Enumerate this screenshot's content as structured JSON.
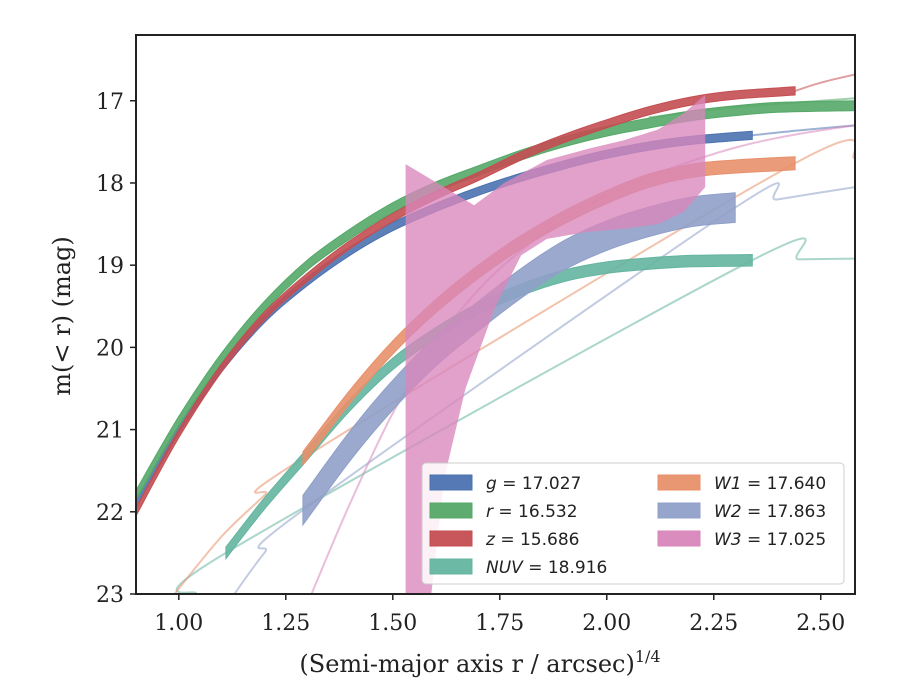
{
  "chart_data": {
    "type": "line",
    "title": "",
    "xlabel": "(Semi-major axis r / arcsec)",
    "xlabel_exponent": "1/4",
    "ylabel": "m(< r) (mag)",
    "xlim": [
      0.9,
      2.58
    ],
    "ylim": [
      23.0,
      16.2
    ],
    "y_inverted": true,
    "x_ticks": [
      1.0,
      1.25,
      1.5,
      1.75,
      2.0,
      2.25,
      2.5
    ],
    "x_tick_labels": [
      "1.00",
      "1.25",
      "1.50",
      "1.75",
      "2.00",
      "2.25",
      "2.50"
    ],
    "y_ticks": [
      17,
      18,
      19,
      20,
      21,
      22,
      23
    ],
    "y_tick_labels": [
      "17",
      "18",
      "19",
      "20",
      "21",
      "22",
      "23"
    ],
    "grid": false,
    "legend_position": "lower-right",
    "legend_columns": 2,
    "series": [
      {
        "name": "g = 17.027",
        "legend_var": "g",
        "legend_value": "17.027",
        "color": "#4c72b0",
        "data_x": [
          0.9,
          1.0,
          1.1,
          1.2,
          1.3,
          1.4,
          1.5,
          1.6,
          1.7,
          1.8,
          1.9,
          2.0,
          2.1,
          2.2,
          2.34
        ],
        "data_y": [
          21.9,
          21.0,
          20.25,
          19.65,
          19.2,
          18.83,
          18.53,
          18.3,
          18.1,
          17.93,
          17.78,
          17.65,
          17.55,
          17.48,
          17.42
        ],
        "band": 0.05,
        "model_x": [
          2.34,
          2.45,
          2.58
        ],
        "model_y": [
          17.42,
          17.36,
          17.3
        ]
      },
      {
        "name": "r = 16.532",
        "legend_var": "r",
        "legend_value": "16.532",
        "color": "#55a868",
        "data_x": [
          0.9,
          1.0,
          1.1,
          1.2,
          1.3,
          1.4,
          1.5,
          1.6,
          1.7,
          1.8,
          1.9,
          2.0,
          2.1,
          2.2,
          2.3,
          2.4,
          2.58
        ],
        "data_y": [
          21.8,
          20.9,
          20.13,
          19.5,
          19.0,
          18.62,
          18.3,
          18.05,
          17.85,
          17.66,
          17.5,
          17.37,
          17.27,
          17.18,
          17.12,
          17.08,
          17.06
        ],
        "band": 0.06,
        "model_x": [
          2.1,
          2.3,
          2.58
        ],
        "model_y": [
          17.2,
          17.08,
          16.97
        ]
      },
      {
        "name": "z = 15.686",
        "legend_var": "z",
        "legend_value": "15.686",
        "color": "#c44e52",
        "data_x": [
          0.9,
          1.0,
          1.1,
          1.2,
          1.3,
          1.4,
          1.5,
          1.6,
          1.7,
          1.8,
          1.9,
          2.0,
          2.1,
          2.2,
          2.3,
          2.44
        ],
        "data_y": [
          22.0,
          21.05,
          20.25,
          19.62,
          19.15,
          18.75,
          18.42,
          18.15,
          17.92,
          17.67,
          17.46,
          17.28,
          17.12,
          17.0,
          16.93,
          16.88
        ],
        "band": 0.05,
        "model_x": [
          2.44,
          2.5,
          2.58
        ],
        "model_y": [
          16.88,
          16.78,
          16.68
        ]
      },
      {
        "name": "NUV = 18.916",
        "legend_var": "NUV",
        "legend_value": "18.916",
        "color": "#64b5a0",
        "data_x": [
          1.11,
          1.2,
          1.3,
          1.4,
          1.5,
          1.6,
          1.7,
          1.8,
          1.9,
          2.0,
          2.1,
          2.2,
          2.34
        ],
        "data_y": [
          22.5,
          21.9,
          21.3,
          20.7,
          20.2,
          19.83,
          19.53,
          19.3,
          19.13,
          19.03,
          18.98,
          18.95,
          18.94
        ],
        "band": 0.07,
        "model_x": [
          1.04,
          1.11,
          2.34,
          2.45,
          2.58
        ],
        "model_y": [
          23.0,
          22.5,
          18.94,
          18.93,
          18.92
        ]
      },
      {
        "name": "W1 = 17.640",
        "legend_var": "W1",
        "legend_value": "17.640",
        "color": "#e8906a",
        "data_x": [
          1.29,
          1.4,
          1.5,
          1.6,
          1.7,
          1.8,
          1.9,
          2.0,
          2.1,
          2.2,
          2.3,
          2.44
        ],
        "data_y": [
          21.35,
          20.6,
          20.0,
          19.5,
          19.08,
          18.72,
          18.42,
          18.17,
          17.97,
          17.85,
          17.8,
          17.76
        ],
        "band": 0.08,
        "model_x": [
          0.99,
          1.1,
          1.2,
          1.29,
          2.44,
          2.58
        ],
        "model_y": [
          23.0,
          22.3,
          21.8,
          21.35,
          17.76,
          17.7
        ]
      },
      {
        "name": "W2 = 17.863",
        "legend_var": "W2",
        "legend_value": "17.863",
        "color": "#8fa0c8",
        "data_x": [
          1.29,
          1.4,
          1.5,
          1.6,
          1.7,
          1.8,
          1.9,
          2.0,
          2.1,
          2.2,
          2.3
        ],
        "data_y": [
          21.98,
          21.2,
          20.58,
          20.05,
          19.62,
          19.22,
          18.88,
          18.64,
          18.47,
          18.35,
          18.3
        ],
        "band": 0.18,
        "model_x": [
          1.13,
          1.2,
          1.29,
          2.3,
          2.4,
          2.58
        ],
        "model_y": [
          23.0,
          22.5,
          21.98,
          18.3,
          18.2,
          18.05
        ]
      },
      {
        "name": "W3 = 17.025",
        "legend_var": "W3",
        "legend_value": "17.025",
        "color": "#d986bb",
        "band_upper_x": [
          1.53,
          1.53,
          1.62,
          1.69,
          1.76,
          1.86,
          1.96,
          2.04,
          2.12,
          2.18,
          2.23
        ],
        "band_upper_y": [
          23.0,
          17.77,
          18.05,
          18.27,
          18.0,
          17.72,
          17.58,
          17.48,
          17.35,
          17.15,
          16.93
        ],
        "band_lower_x": [
          2.23,
          2.18,
          2.12,
          2.05,
          1.95,
          1.86,
          1.8,
          1.74,
          1.67,
          1.62,
          1.59
        ],
        "band_lower_y": [
          18.05,
          18.35,
          18.5,
          18.55,
          18.6,
          18.68,
          18.88,
          19.5,
          20.5,
          21.6,
          23.0
        ],
        "model_x": [
          1.31,
          1.4,
          1.5,
          1.6,
          1.7,
          1.8,
          1.9,
          2.0,
          2.1,
          2.2,
          2.3,
          2.4,
          2.5,
          2.58
        ],
        "model_y": [
          23.0,
          21.9,
          20.8,
          19.95,
          19.3,
          18.82,
          18.45,
          18.15,
          17.92,
          17.73,
          17.57,
          17.45,
          17.36,
          17.3
        ]
      }
    ]
  }
}
